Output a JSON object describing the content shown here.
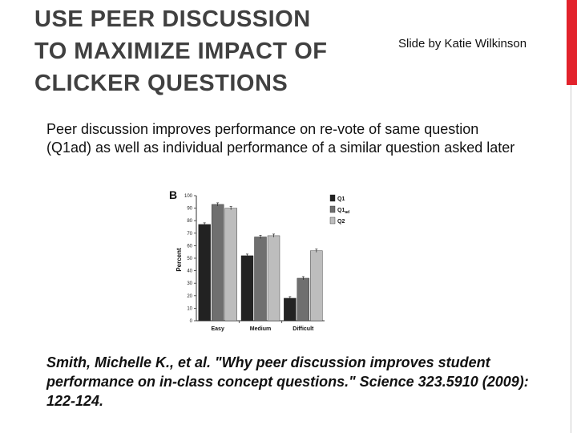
{
  "slide": {
    "title": "USE PEER DISCUSSION\nTO MAXIMIZE IMPACT OF\nCLICKER QUESTIONS",
    "credit": "Slide by Katie Wilkinson",
    "body": "Peer discussion improves performance on re-vote of same question (Q1ad) as well as individual performance of a similar question asked later",
    "citation": "Smith, Michelle K., et al. \"Why peer discussion improves student performance on in-class concept questions.\" Science 323.5910 (2009): 122-124.",
    "accent_color": "#e2222c"
  },
  "chart_data": {
    "type": "bar",
    "panel_label": "B",
    "categories": [
      "Easy",
      "Medium",
      "Difficult"
    ],
    "series": [
      {
        "name": "Q1",
        "values": [
          77,
          52,
          18
        ],
        "color": "#222222"
      },
      {
        "name": "Q1ad",
        "values": [
          93,
          67,
          34
        ],
        "color": "#6f6f6f"
      },
      {
        "name": "Q2",
        "values": [
          90,
          68,
          56
        ],
        "color": "#bdbdbd"
      }
    ],
    "ylabel": "Percent",
    "ylim": [
      0,
      100
    ],
    "yticks": [
      0,
      10,
      20,
      30,
      40,
      50,
      60,
      70,
      80,
      90,
      100
    ],
    "legend_position": "top-right",
    "error_bars": true
  }
}
